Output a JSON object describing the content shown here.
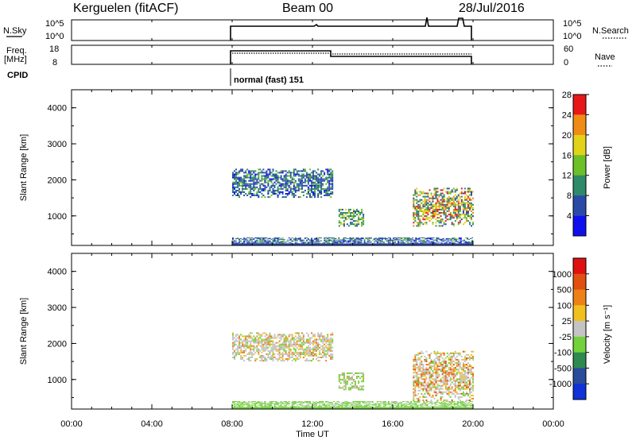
{
  "header": {
    "station": "Kerguelen (fitACF)",
    "beam": "Beam 00",
    "date": "28/Jul/2016"
  },
  "top_panels": {
    "nsky_label": "N.Sky",
    "nsky_ticks": [
      "10^5",
      "10^0"
    ],
    "nsearch_label": "N.Search",
    "nsearch_ticks": [
      "10^5",
      "10^0"
    ],
    "freq_label": "Freq.",
    "freq_unit": "[MHz]",
    "freq_ticks": [
      "18",
      "8"
    ],
    "nave_label": "Nave",
    "nave_ticks": [
      "60",
      "0"
    ],
    "cpid_label": "CPID",
    "cpid_value": "normal (fast) 151"
  },
  "chart_data": [
    {
      "type": "heatmap",
      "name": "power-panel",
      "ylabel": "Slant Range [km]",
      "xlabel": "",
      "ylim": [
        180,
        4500
      ],
      "xlim": [
        0,
        24
      ],
      "y_ticks": [
        "1000",
        "2000",
        "3000",
        "4000"
      ],
      "colorbar": {
        "label": "Power [dB]",
        "ticks": [
          "4",
          "8",
          "12",
          "16",
          "20",
          "24",
          "28"
        ],
        "colors": [
          "#1010ee",
          "#2a4aa8",
          "#2f8a6a",
          "#6cc028",
          "#e2d21a",
          "#ee8c16",
          "#e81818"
        ]
      },
      "data_window": [
        8.0,
        20.0
      ],
      "echo_regions": [
        {
          "t": [
            8.0,
            13.0
          ],
          "range": [
            1500,
            2300
          ],
          "level": "mixed 4-16 dB"
        },
        {
          "t": [
            13.3,
            14.6
          ],
          "range": [
            700,
            1200
          ],
          "level": "mixed 8-20 dB"
        },
        {
          "t": [
            17.0,
            20.0
          ],
          "range": [
            700,
            1800
          ],
          "level": "mixed 8-28 dB"
        },
        {
          "t": [
            8.0,
            20.0
          ],
          "range": [
            180,
            400
          ],
          "level": "mixed 4-12 dB"
        }
      ]
    },
    {
      "type": "heatmap",
      "name": "velocity-panel",
      "ylabel": "Slant Range [km]",
      "xlabel": "Time UT",
      "ylim": [
        180,
        4500
      ],
      "xlim": [
        0,
        24
      ],
      "y_ticks": [
        "1000",
        "2000",
        "3000",
        "4000"
      ],
      "x_ticks": [
        "00:00",
        "04:00",
        "08:00",
        "12:00",
        "16:00",
        "20:00",
        "00:00"
      ],
      "colorbar": {
        "label": "Velocity [m s⁻¹]",
        "ticks": [
          "1000",
          "500",
          "100",
          "25",
          "-25",
          "-100",
          "-500",
          "-1000"
        ],
        "colors": [
          "#1030d8",
          "#2a4a9a",
          "#2e8a4e",
          "#72d23a",
          "#c4c4c4",
          "#f0c020",
          "#ee8018",
          "#e05010",
          "#e01010"
        ]
      },
      "data_window": [
        8.0,
        20.0
      ],
      "echo_regions": [
        {
          "t": [
            8.0,
            13.0
          ],
          "range": [
            1500,
            2300
          ],
          "level": "mostly gray (-25 to 25)"
        },
        {
          "t": [
            13.3,
            14.6
          ],
          "range": [
            700,
            1200
          ],
          "level": "green and tan"
        },
        {
          "t": [
            17.0,
            20.0
          ],
          "range": [
            400,
            1800
          ],
          "level": "gray, orange, green"
        },
        {
          "t": [
            8.0,
            20.0
          ],
          "range": [
            180,
            400
          ],
          "level": "green"
        }
      ]
    }
  ]
}
